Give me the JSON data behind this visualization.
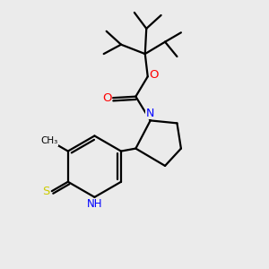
{
  "bg_color": "#ebebeb",
  "atom_color_N": "#0000ff",
  "atom_color_O": "#ff0000",
  "atom_color_S": "#cccc00",
  "atom_color_C": "#000000",
  "line_color": "#000000",
  "line_width": 1.6,
  "fig_size": [
    3.0,
    3.0
  ],
  "dpi": 100,
  "xlim": [
    0,
    10
  ],
  "ylim": [
    0,
    10
  ]
}
